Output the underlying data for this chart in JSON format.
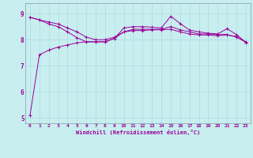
{
  "xlabel": "Windchill (Refroidissement éolien,°C)",
  "bg_color": "#c8eef0",
  "grid_color": "#aadddd",
  "line_color": "#990099",
  "xlim": [
    -0.5,
    23.5
  ],
  "ylim": [
    4.8,
    9.4
  ],
  "xtick_labels": [
    "0",
    "1",
    "2",
    "3",
    "4",
    "5",
    "6",
    "7",
    "8",
    "9",
    "10",
    "11",
    "12",
    "13",
    "14",
    "15",
    "16",
    "17",
    "18",
    "19",
    "20",
    "21",
    "22",
    "23"
  ],
  "ytick_values": [
    5,
    6,
    7,
    8,
    9
  ],
  "line1": [
    8.86,
    8.76,
    8.6,
    8.5,
    8.3,
    8.08,
    7.92,
    7.92,
    7.92,
    8.05,
    8.45,
    8.5,
    8.5,
    8.48,
    8.45,
    8.9,
    8.62,
    8.37,
    8.3,
    8.25,
    8.22,
    8.42,
    8.2,
    7.9
  ],
  "line2": [
    8.86,
    8.76,
    8.68,
    8.6,
    8.45,
    8.3,
    8.1,
    8.0,
    8.0,
    8.1,
    8.3,
    8.4,
    8.4,
    8.4,
    8.4,
    8.5,
    8.38,
    8.3,
    8.22,
    8.22,
    8.2,
    8.2,
    8.1,
    7.92
  ],
  "line3": [
    5.1,
    7.42,
    7.6,
    7.72,
    7.8,
    7.88,
    7.92,
    7.92,
    7.92,
    8.05,
    8.3,
    8.35,
    8.35,
    8.38,
    8.38,
    8.4,
    8.3,
    8.22,
    8.18,
    8.18,
    8.15,
    8.18,
    8.12,
    7.9
  ]
}
